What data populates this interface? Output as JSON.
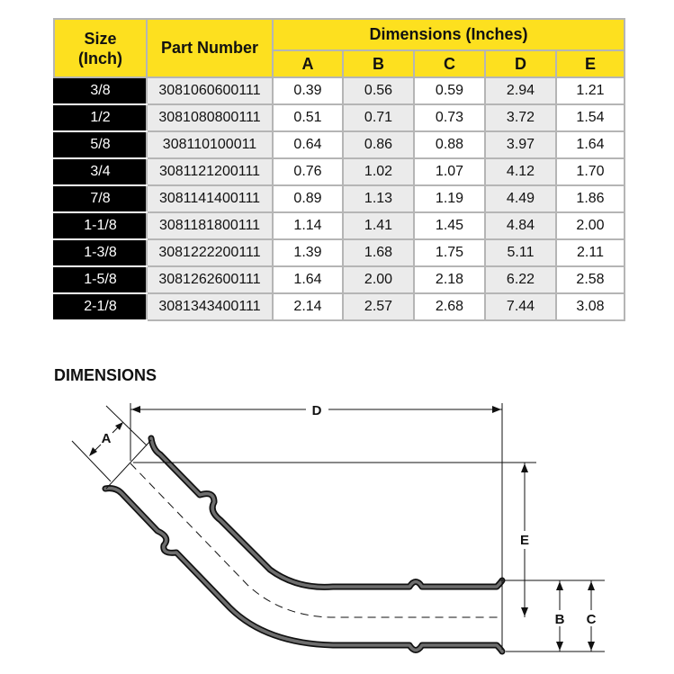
{
  "table": {
    "headers": {
      "size": "Size (Inch)",
      "part_number": "Part Number",
      "dimensions": "Dimensions (Inches)",
      "dims": [
        "A",
        "B",
        "C",
        "D",
        "E"
      ]
    },
    "rows": [
      {
        "size": "3/8",
        "part": "3081060600111",
        "vals": [
          "0.39",
          "0.56",
          "0.59",
          "2.94",
          "1.21"
        ]
      },
      {
        "size": "1/2",
        "part": "3081080800111",
        "vals": [
          "0.51",
          "0.71",
          "0.73",
          "3.72",
          "1.54"
        ]
      },
      {
        "size": "5/8",
        "part": "308110100011",
        "vals": [
          "0.64",
          "0.86",
          "0.88",
          "3.97",
          "1.64"
        ]
      },
      {
        "size": "3/4",
        "part": "3081121200111",
        "vals": [
          "0.76",
          "1.02",
          "1.07",
          "4.12",
          "1.70"
        ]
      },
      {
        "size": "7/8",
        "part": "3081141400111",
        "vals": [
          "0.89",
          "1.13",
          "1.19",
          "4.49",
          "1.86"
        ]
      },
      {
        "size": "1-1/8",
        "part": "3081181800111",
        "vals": [
          "1.14",
          "1.41",
          "1.45",
          "4.84",
          "2.00"
        ]
      },
      {
        "size": "1-3/8",
        "part": "3081222200111",
        "vals": [
          "1.39",
          "1.68",
          "1.75",
          "5.11",
          "2.11"
        ]
      },
      {
        "size": "1-5/8",
        "part": "3081262600111",
        "vals": [
          "1.64",
          "2.00",
          "2.18",
          "6.22",
          "2.58"
        ]
      },
      {
        "size": "2-1/8",
        "part": "3081343400111",
        "vals": [
          "2.14",
          "2.57",
          "2.68",
          "7.44",
          "3.08"
        ]
      }
    ]
  },
  "diagram": {
    "title": "DIMENSIONS",
    "labels": {
      "A": "A",
      "B": "B",
      "C": "C",
      "D": "D",
      "E": "E"
    }
  },
  "colors": {
    "header": "#fde01f",
    "size_cell": "#000000",
    "shade": "#ebebeb"
  }
}
